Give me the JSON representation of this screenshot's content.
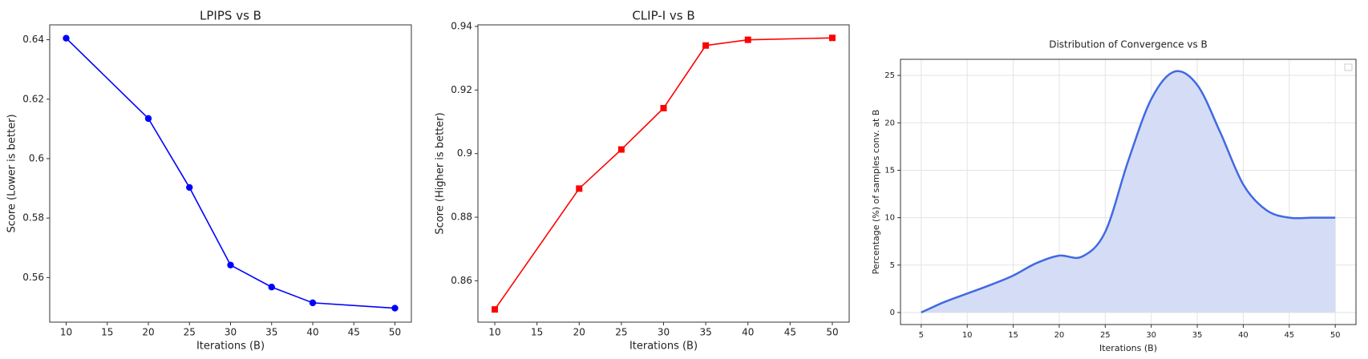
{
  "chart_data": [
    {
      "type": "line",
      "title": "LPIPS vs B",
      "xlabel": "Iterations (B)",
      "ylabel": "Score (Lower is better)",
      "x": [
        10,
        20,
        25,
        30,
        35,
        40,
        50
      ],
      "series": [
        {
          "color": "#0000ff",
          "marker": "circle",
          "values": [
            0.6405,
            0.6135,
            0.5903,
            0.5642,
            0.5568,
            0.5515,
            0.5497
          ]
        }
      ],
      "xlim": [
        8,
        52
      ],
      "ylim": [
        0.545,
        0.645
      ],
      "xticks": [
        10,
        15,
        20,
        25,
        30,
        35,
        40,
        45,
        50
      ],
      "yticks": [
        0.56,
        0.58,
        0.6,
        0.62,
        0.64
      ],
      "grid": false
    },
    {
      "type": "line",
      "title": "CLIP-I vs B",
      "xlabel": "Iterations (B)",
      "ylabel": "Score (Higher is better)",
      "x": [
        10,
        20,
        25,
        30,
        35,
        40,
        50
      ],
      "series": [
        {
          "color": "#ff0000",
          "marker": "square",
          "values": [
            0.851,
            0.889,
            0.9013,
            0.9143,
            0.934,
            0.9358,
            0.9364
          ]
        }
      ],
      "xlim": [
        8,
        52
      ],
      "ylim": [
        0.847,
        0.9405
      ],
      "xticks": [
        10,
        15,
        20,
        25,
        30,
        35,
        40,
        45,
        50
      ],
      "yticks": [
        0.86,
        0.88,
        0.9,
        0.92,
        0.94
      ],
      "grid": false
    },
    {
      "type": "area",
      "title": "Distribution of Convergence vs B",
      "xlabel": "Iterations (B)",
      "ylabel": "Percentage (%) of samples conv. at B",
      "x": [
        5,
        7.5,
        10,
        12.5,
        15,
        17.5,
        20,
        22.5,
        25,
        27.5,
        30,
        32.5,
        35,
        37.5,
        40,
        42.5,
        45,
        47.5,
        50
      ],
      "series": [
        {
          "color": "#4169e1",
          "fill": "#d5dcf5",
          "values": [
            0,
            1.1,
            2,
            2.9,
            3.9,
            5.2,
            6,
            5.9,
            8.5,
            16,
            22.5,
            25.4,
            24,
            19,
            13.5,
            10.8,
            10,
            10,
            10
          ]
        }
      ],
      "xlim": [
        2.75,
        52.25
      ],
      "ylim": [
        -1.27,
        26.7
      ],
      "xticks": [
        5,
        10,
        15,
        20,
        25,
        30,
        35,
        40,
        45,
        50
      ],
      "yticks": [
        0,
        5,
        10,
        15,
        20,
        25
      ],
      "grid": true
    }
  ]
}
